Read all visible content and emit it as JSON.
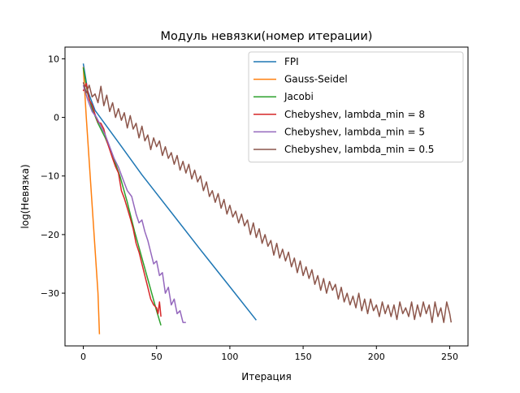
{
  "chart_data": {
    "type": "line",
    "title": "Модуль невязки(номер итерации)",
    "xlabel": "Итерация",
    "ylabel": "log(Невязка)",
    "xlim": [
      -12.5,
      262.5
    ],
    "ylim": [
      -39,
      12
    ],
    "x_ticks": [
      0,
      50,
      100,
      150,
      200,
      250
    ],
    "y_ticks": [
      -30,
      -20,
      -10,
      0,
      10
    ],
    "grid": false,
    "legend_position": "top-right",
    "series": [
      {
        "name": "FPI",
        "color": "#1f77b4",
        "points": [
          [
            0,
            9.2
          ],
          [
            3,
            4.5
          ],
          [
            8,
            1.2
          ],
          [
            15,
            -1.2
          ],
          [
            25,
            -4.6
          ],
          [
            40,
            -9.8
          ],
          [
            60,
            -16.2
          ],
          [
            80,
            -22.6
          ],
          [
            100,
            -28.9
          ],
          [
            118,
            -34.6
          ]
        ]
      },
      {
        "name": "Gauss-Seidel",
        "color": "#ff7f0e",
        "points": [
          [
            0,
            8.6
          ],
          [
            2,
            0.0
          ],
          [
            4,
            -7.5
          ],
          [
            6,
            -15.0
          ],
          [
            8,
            -22.5
          ],
          [
            10,
            -30.0
          ],
          [
            11,
            -37.0
          ]
        ]
      },
      {
        "name": "Jacobi",
        "color": "#2ca02c",
        "points": [
          [
            0,
            8.5
          ],
          [
            3,
            4.0
          ],
          [
            6,
            1.5
          ],
          [
            10,
            -1.0
          ],
          [
            15,
            -3.5
          ],
          [
            20,
            -6.5
          ],
          [
            25,
            -10.0
          ],
          [
            30,
            -14.5
          ],
          [
            35,
            -19.5
          ],
          [
            40,
            -24.0
          ],
          [
            45,
            -28.5
          ],
          [
            50,
            -33.0
          ],
          [
            53,
            -35.5
          ]
        ]
      },
      {
        "name": "Chebyshev, lambda_min = 8",
        "color": "#d62728",
        "points": [
          [
            0,
            4.5
          ],
          [
            2,
            5.8
          ],
          [
            4,
            3.0
          ],
          [
            6,
            2.1
          ],
          [
            8,
            0.5
          ],
          [
            10,
            -0.8
          ],
          [
            12,
            -1.0
          ],
          [
            14,
            -2.0
          ],
          [
            16,
            -4.0
          ],
          [
            18,
            -5.5
          ],
          [
            20,
            -7.0
          ],
          [
            22,
            -8.4
          ],
          [
            24,
            -9.5
          ],
          [
            26,
            -12.5
          ],
          [
            28,
            -13.8
          ],
          [
            30,
            -15.5
          ],
          [
            32,
            -17.2
          ],
          [
            34,
            -19.0
          ],
          [
            36,
            -21.5
          ],
          [
            38,
            -23.0
          ],
          [
            40,
            -25.0
          ],
          [
            42,
            -27.0
          ],
          [
            44,
            -29.0
          ],
          [
            46,
            -31.0
          ],
          [
            48,
            -32.0
          ],
          [
            50,
            -32.5
          ],
          [
            51,
            -33.5
          ],
          [
            52,
            -31.5
          ],
          [
            53,
            -34.0
          ]
        ]
      },
      {
        "name": "Chebyshev, lambda_min = 5",
        "color": "#9467bd",
        "points": [
          [
            0,
            5.5
          ],
          [
            3,
            3.0
          ],
          [
            6,
            1.0
          ],
          [
            9,
            0.0
          ],
          [
            12,
            -1.5
          ],
          [
            15,
            -3.0
          ],
          [
            18,
            -5.0
          ],
          [
            21,
            -7.0
          ],
          [
            24,
            -8.5
          ],
          [
            27,
            -10.5
          ],
          [
            30,
            -12.5
          ],
          [
            33,
            -13.5
          ],
          [
            36,
            -16.5
          ],
          [
            38,
            -18.0
          ],
          [
            40,
            -17.5
          ],
          [
            42,
            -19.5
          ],
          [
            44,
            -21.0
          ],
          [
            46,
            -23.0
          ],
          [
            48,
            -25.0
          ],
          [
            50,
            -24.5
          ],
          [
            52,
            -27.0
          ],
          [
            54,
            -26.5
          ],
          [
            56,
            -30.0
          ],
          [
            58,
            -29.0
          ],
          [
            60,
            -32.0
          ],
          [
            62,
            -31.0
          ],
          [
            64,
            -33.5
          ],
          [
            66,
            -33.0
          ],
          [
            68,
            -35.0
          ],
          [
            70,
            -35.0
          ]
        ]
      },
      {
        "name": "Chebyshev, lambda_min = 0.5",
        "color": "#8c564b",
        "points": [
          [
            0,
            6.0
          ],
          [
            2,
            4.2
          ],
          [
            4,
            5.5
          ],
          [
            6,
            3.5
          ],
          [
            8,
            4.0
          ],
          [
            10,
            2.5
          ],
          [
            12,
            5.3
          ],
          [
            14,
            2.0
          ],
          [
            16,
            3.8
          ],
          [
            18,
            1.0
          ],
          [
            20,
            2.5
          ],
          [
            22,
            0.0
          ],
          [
            24,
            1.5
          ],
          [
            26,
            -0.5
          ],
          [
            28,
            0.8
          ],
          [
            30,
            -1.8
          ],
          [
            32,
            0.3
          ],
          [
            34,
            -2.0
          ],
          [
            36,
            -1.0
          ],
          [
            38,
            -3.5
          ],
          [
            40,
            -1.5
          ],
          [
            42,
            -4.0
          ],
          [
            44,
            -3.0
          ],
          [
            46,
            -5.5
          ],
          [
            48,
            -3.5
          ],
          [
            50,
            -5.0
          ],
          [
            52,
            -4.0
          ],
          [
            54,
            -6.5
          ],
          [
            56,
            -5.0
          ],
          [
            58,
            -7.0
          ],
          [
            60,
            -6.0
          ],
          [
            62,
            -8.0
          ],
          [
            64,
            -6.5
          ],
          [
            66,
            -9.0
          ],
          [
            68,
            -7.5
          ],
          [
            70,
            -9.5
          ],
          [
            72,
            -8.0
          ],
          [
            74,
            -10.5
          ],
          [
            76,
            -9.0
          ],
          [
            78,
            -11.0
          ],
          [
            80,
            -10.0
          ],
          [
            82,
            -12.5
          ],
          [
            84,
            -11.0
          ],
          [
            86,
            -13.5
          ],
          [
            88,
            -12.5
          ],
          [
            90,
            -14.5
          ],
          [
            92,
            -13.0
          ],
          [
            94,
            -15.5
          ],
          [
            96,
            -14.0
          ],
          [
            98,
            -16.5
          ],
          [
            100,
            -15.0
          ],
          [
            102,
            -17.0
          ],
          [
            104,
            -16.0
          ],
          [
            106,
            -18.0
          ],
          [
            108,
            -16.5
          ],
          [
            110,
            -18.5
          ],
          [
            112,
            -17.5
          ],
          [
            114,
            -20.0
          ],
          [
            116,
            -18.0
          ],
          [
            118,
            -20.5
          ],
          [
            120,
            -19.0
          ],
          [
            122,
            -21.5
          ],
          [
            124,
            -20.0
          ],
          [
            126,
            -22.0
          ],
          [
            128,
            -21.0
          ],
          [
            130,
            -23.5
          ],
          [
            132,
            -21.5
          ],
          [
            134,
            -24.0
          ],
          [
            136,
            -22.5
          ],
          [
            138,
            -24.5
          ],
          [
            140,
            -23.0
          ],
          [
            142,
            -25.5
          ],
          [
            144,
            -24.0
          ],
          [
            146,
            -26.5
          ],
          [
            148,
            -24.5
          ],
          [
            150,
            -27.0
          ],
          [
            152,
            -25.5
          ],
          [
            154,
            -27.5
          ],
          [
            156,
            -26.0
          ],
          [
            158,
            -28.5
          ],
          [
            160,
            -27.0
          ],
          [
            162,
            -29.5
          ],
          [
            164,
            -27.5
          ],
          [
            166,
            -30.0
          ],
          [
            168,
            -28.0
          ],
          [
            170,
            -29.5
          ],
          [
            172,
            -28.5
          ],
          [
            174,
            -31.0
          ],
          [
            176,
            -29.0
          ],
          [
            178,
            -31.5
          ],
          [
            180,
            -30.0
          ],
          [
            182,
            -32.0
          ],
          [
            184,
            -30.5
          ],
          [
            186,
            -32.5
          ],
          [
            188,
            -30.0
          ],
          [
            190,
            -33.0
          ],
          [
            192,
            -31.0
          ],
          [
            194,
            -33.5
          ],
          [
            196,
            -31.0
          ],
          [
            198,
            -33.0
          ],
          [
            200,
            -32.0
          ],
          [
            202,
            -34.0
          ],
          [
            204,
            -31.5
          ],
          [
            206,
            -33.5
          ],
          [
            208,
            -32.0
          ],
          [
            210,
            -34.0
          ],
          [
            212,
            -32.0
          ],
          [
            214,
            -34.5
          ],
          [
            216,
            -31.5
          ],
          [
            218,
            -33.5
          ],
          [
            220,
            -32.5
          ],
          [
            222,
            -34.0
          ],
          [
            224,
            -31.5
          ],
          [
            226,
            -34.5
          ],
          [
            228,
            -32.0
          ],
          [
            230,
            -34.0
          ],
          [
            232,
            -31.5
          ],
          [
            234,
            -33.5
          ],
          [
            236,
            -32.0
          ],
          [
            238,
            -35.0
          ],
          [
            240,
            -31.5
          ],
          [
            242,
            -34.0
          ],
          [
            244,
            -32.5
          ],
          [
            246,
            -35.0
          ],
          [
            248,
            -31.5
          ],
          [
            250,
            -33.5
          ],
          [
            251,
            -35.0
          ]
        ]
      }
    ]
  }
}
